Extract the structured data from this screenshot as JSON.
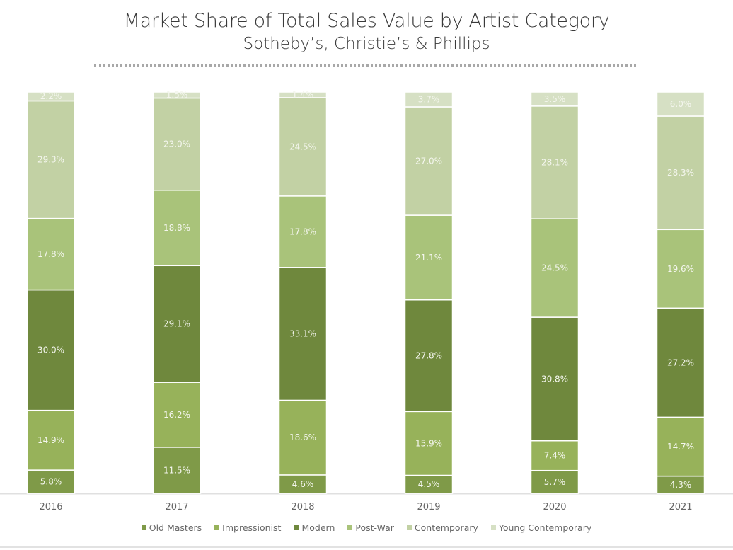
{
  "chart_data": {
    "type": "bar",
    "stacked": true,
    "title": "Market Share of Total Sales Value by Artist Category",
    "subtitle": "Sotheby’s, Christie’s & Phillips",
    "categories": [
      "2016",
      "2017",
      "2018",
      "2019",
      "2020",
      "2021"
    ],
    "ylim": [
      0,
      100
    ],
    "unit": "%",
    "grid": false,
    "legend_position": "bottom",
    "series": [
      {
        "name": "Old Masters",
        "color": "#7f9a48",
        "values": [
          5.8,
          11.5,
          4.6,
          4.5,
          5.7,
          4.3
        ]
      },
      {
        "name": "Impressionist",
        "color": "#97b25a",
        "values": [
          14.9,
          16.2,
          18.6,
          15.9,
          7.4,
          14.7
        ]
      },
      {
        "name": "Modern",
        "color": "#6f883d",
        "values": [
          30.0,
          29.1,
          33.1,
          27.8,
          30.8,
          27.2
        ]
      },
      {
        "name": "Post-War",
        "color": "#a9c37a",
        "values": [
          17.8,
          18.8,
          17.8,
          21.1,
          24.5,
          19.6
        ]
      },
      {
        "name": "Contemporary",
        "color": "#c2d1a4",
        "values": [
          29.3,
          23.0,
          24.5,
          27.0,
          28.1,
          28.3
        ]
      },
      {
        "name": "Young Contemporary",
        "color": "#d6e0c4",
        "values": [
          2.2,
          1.5,
          1.4,
          3.7,
          3.5,
          6.0
        ]
      }
    ]
  }
}
